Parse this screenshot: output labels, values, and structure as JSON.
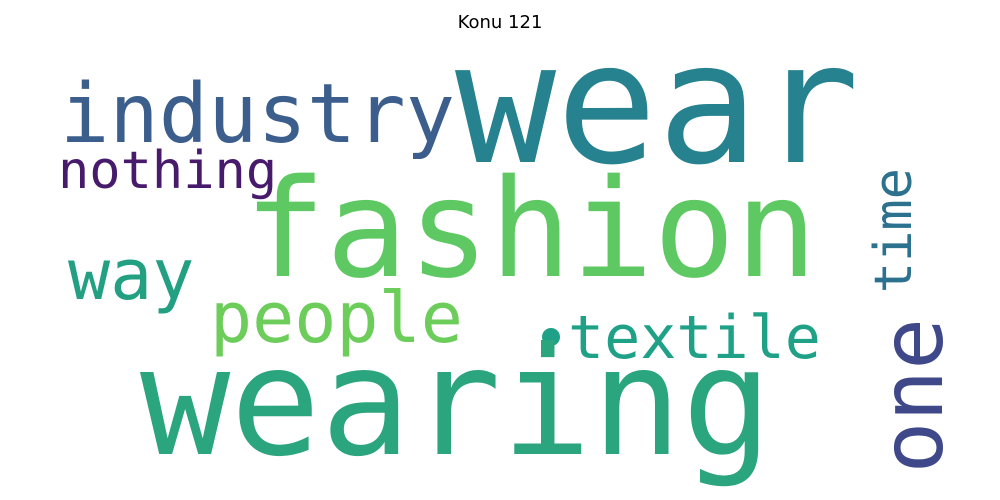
{
  "title": "Konu 121",
  "words": {
    "wear": {
      "text": "wear",
      "color": "#26828e"
    },
    "fashion": {
      "text": "fashion",
      "color": "#5ec962"
    },
    "wearing": {
      "text": "wearing",
      "color": "#2ba57d"
    },
    "industry": {
      "text": "industry",
      "color": "#3b5e8c"
    },
    "nothing": {
      "text": "nothing",
      "color": "#481a6c"
    },
    "way": {
      "text": "way",
      "color": "#23a082"
    },
    "people": {
      "text": "people",
      "color": "#6ccd5a"
    },
    "textile": {
      "text": "textile",
      "color": "#1fa187"
    },
    "time": {
      "text": "time",
      "color": "#2c718e"
    },
    "one": {
      "text": "one",
      "color": "#3f4889"
    }
  },
  "colors": {
    "background": "#ffffff",
    "title": "#000000"
  }
}
